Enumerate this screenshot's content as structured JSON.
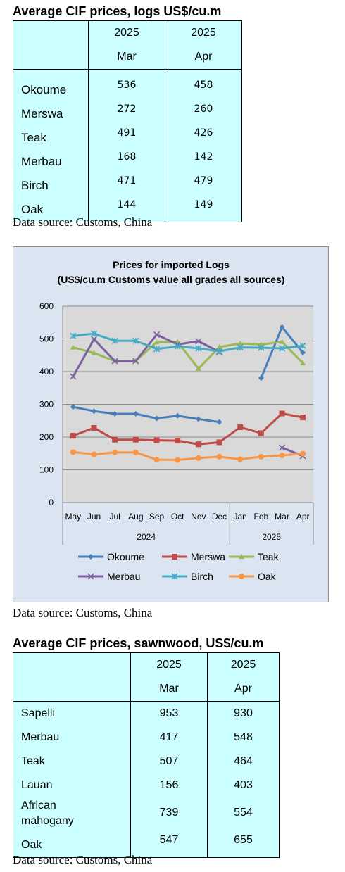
{
  "logs": {
    "title": "Average CIF prices, logs US$/cu.m",
    "col1_year": "2025",
    "col1_month": "Mar",
    "col2_year": "2025",
    "col2_month": "Apr",
    "rows": [
      {
        "name": "Okoume",
        "mar": "536",
        "apr": "458"
      },
      {
        "name": "Merswa",
        "mar": "272",
        "apr": "260"
      },
      {
        "name": "Teak",
        "mar": "491",
        "apr": "426"
      },
      {
        "name": "Merbau",
        "mar": "168",
        "apr": "142"
      },
      {
        "name": "Birch",
        "mar": "471",
        "apr": "479"
      },
      {
        "name": "Oak",
        "mar": "144",
        "apr": "149"
      }
    ],
    "source": "Data source: Customs, China"
  },
  "chart_source": "Data source: Customs, China",
  "sawnwood": {
    "title": "Average CIF prices, sawnwood, US$/cu.m",
    "col1_year": "2025",
    "col1_month": "Mar",
    "col2_year": "2025",
    "col2_month": "Apr",
    "rows": [
      {
        "name": "Sapelli",
        "mar": "953",
        "apr": "930"
      },
      {
        "name": "Merbau",
        "mar": "417",
        "apr": "548"
      },
      {
        "name": "Teak",
        "mar": "507",
        "apr": "464"
      },
      {
        "name": "Lauan",
        "mar": "156",
        "apr": "403"
      },
      {
        "name": "African mahogany",
        "mar": "739",
        "apr": "554"
      },
      {
        "name": "Oak",
        "mar": "547",
        "apr": "655"
      }
    ],
    "source": "Data source: Customs, China"
  },
  "chart_data": {
    "type": "line",
    "title": "Prices for imported Logs",
    "subtitle": "(US$/cu.m Customs value all grades all sources)",
    "categories": [
      "May",
      "Jun",
      "Jul",
      "Aug",
      "Sep",
      "Oct",
      "Nov",
      "Dec",
      "Jan",
      "Feb",
      "Mar",
      "Apr"
    ],
    "year_groups": [
      {
        "label": "2024",
        "start": 0,
        "end": 7
      },
      {
        "label": "2025",
        "start": 8,
        "end": 11
      }
    ],
    "ylim": [
      0,
      600
    ],
    "yticks": [
      0,
      100,
      200,
      300,
      400,
      500,
      600
    ],
    "grid": true,
    "legend_position": "bottom",
    "series": [
      {
        "name": "Okoume",
        "color": "#4a7ebb",
        "marker": "diamond",
        "values": [
          292,
          279,
          271,
          271,
          257,
          265,
          255,
          246,
          null,
          380,
          536,
          458
        ]
      },
      {
        "name": "Merswa",
        "color": "#be4b48",
        "marker": "square",
        "values": [
          204,
          228,
          192,
          192,
          190,
          189,
          178,
          184,
          230,
          212,
          272,
          260
        ]
      },
      {
        "name": "Teak",
        "color": "#98b954",
        "marker": "triangle",
        "values": [
          474,
          457,
          432,
          433,
          490,
          491,
          409,
          475,
          486,
          483,
          491,
          426
        ]
      },
      {
        "name": "Merbau",
        "color": "#7d60a0",
        "marker": "x",
        "values": [
          385,
          499,
          432,
          432,
          513,
          483,
          493,
          460,
          null,
          null,
          168,
          142
        ]
      },
      {
        "name": "Birch",
        "color": "#46aac5",
        "marker": "star",
        "values": [
          509,
          516,
          494,
          494,
          469,
          477,
          471,
          462,
          474,
          473,
          471,
          479
        ]
      },
      {
        "name": "Oak",
        "color": "#f79646",
        "marker": "circle",
        "values": [
          154,
          147,
          153,
          153,
          131,
          130,
          136,
          140,
          132,
          140,
          144,
          149
        ]
      }
    ]
  }
}
